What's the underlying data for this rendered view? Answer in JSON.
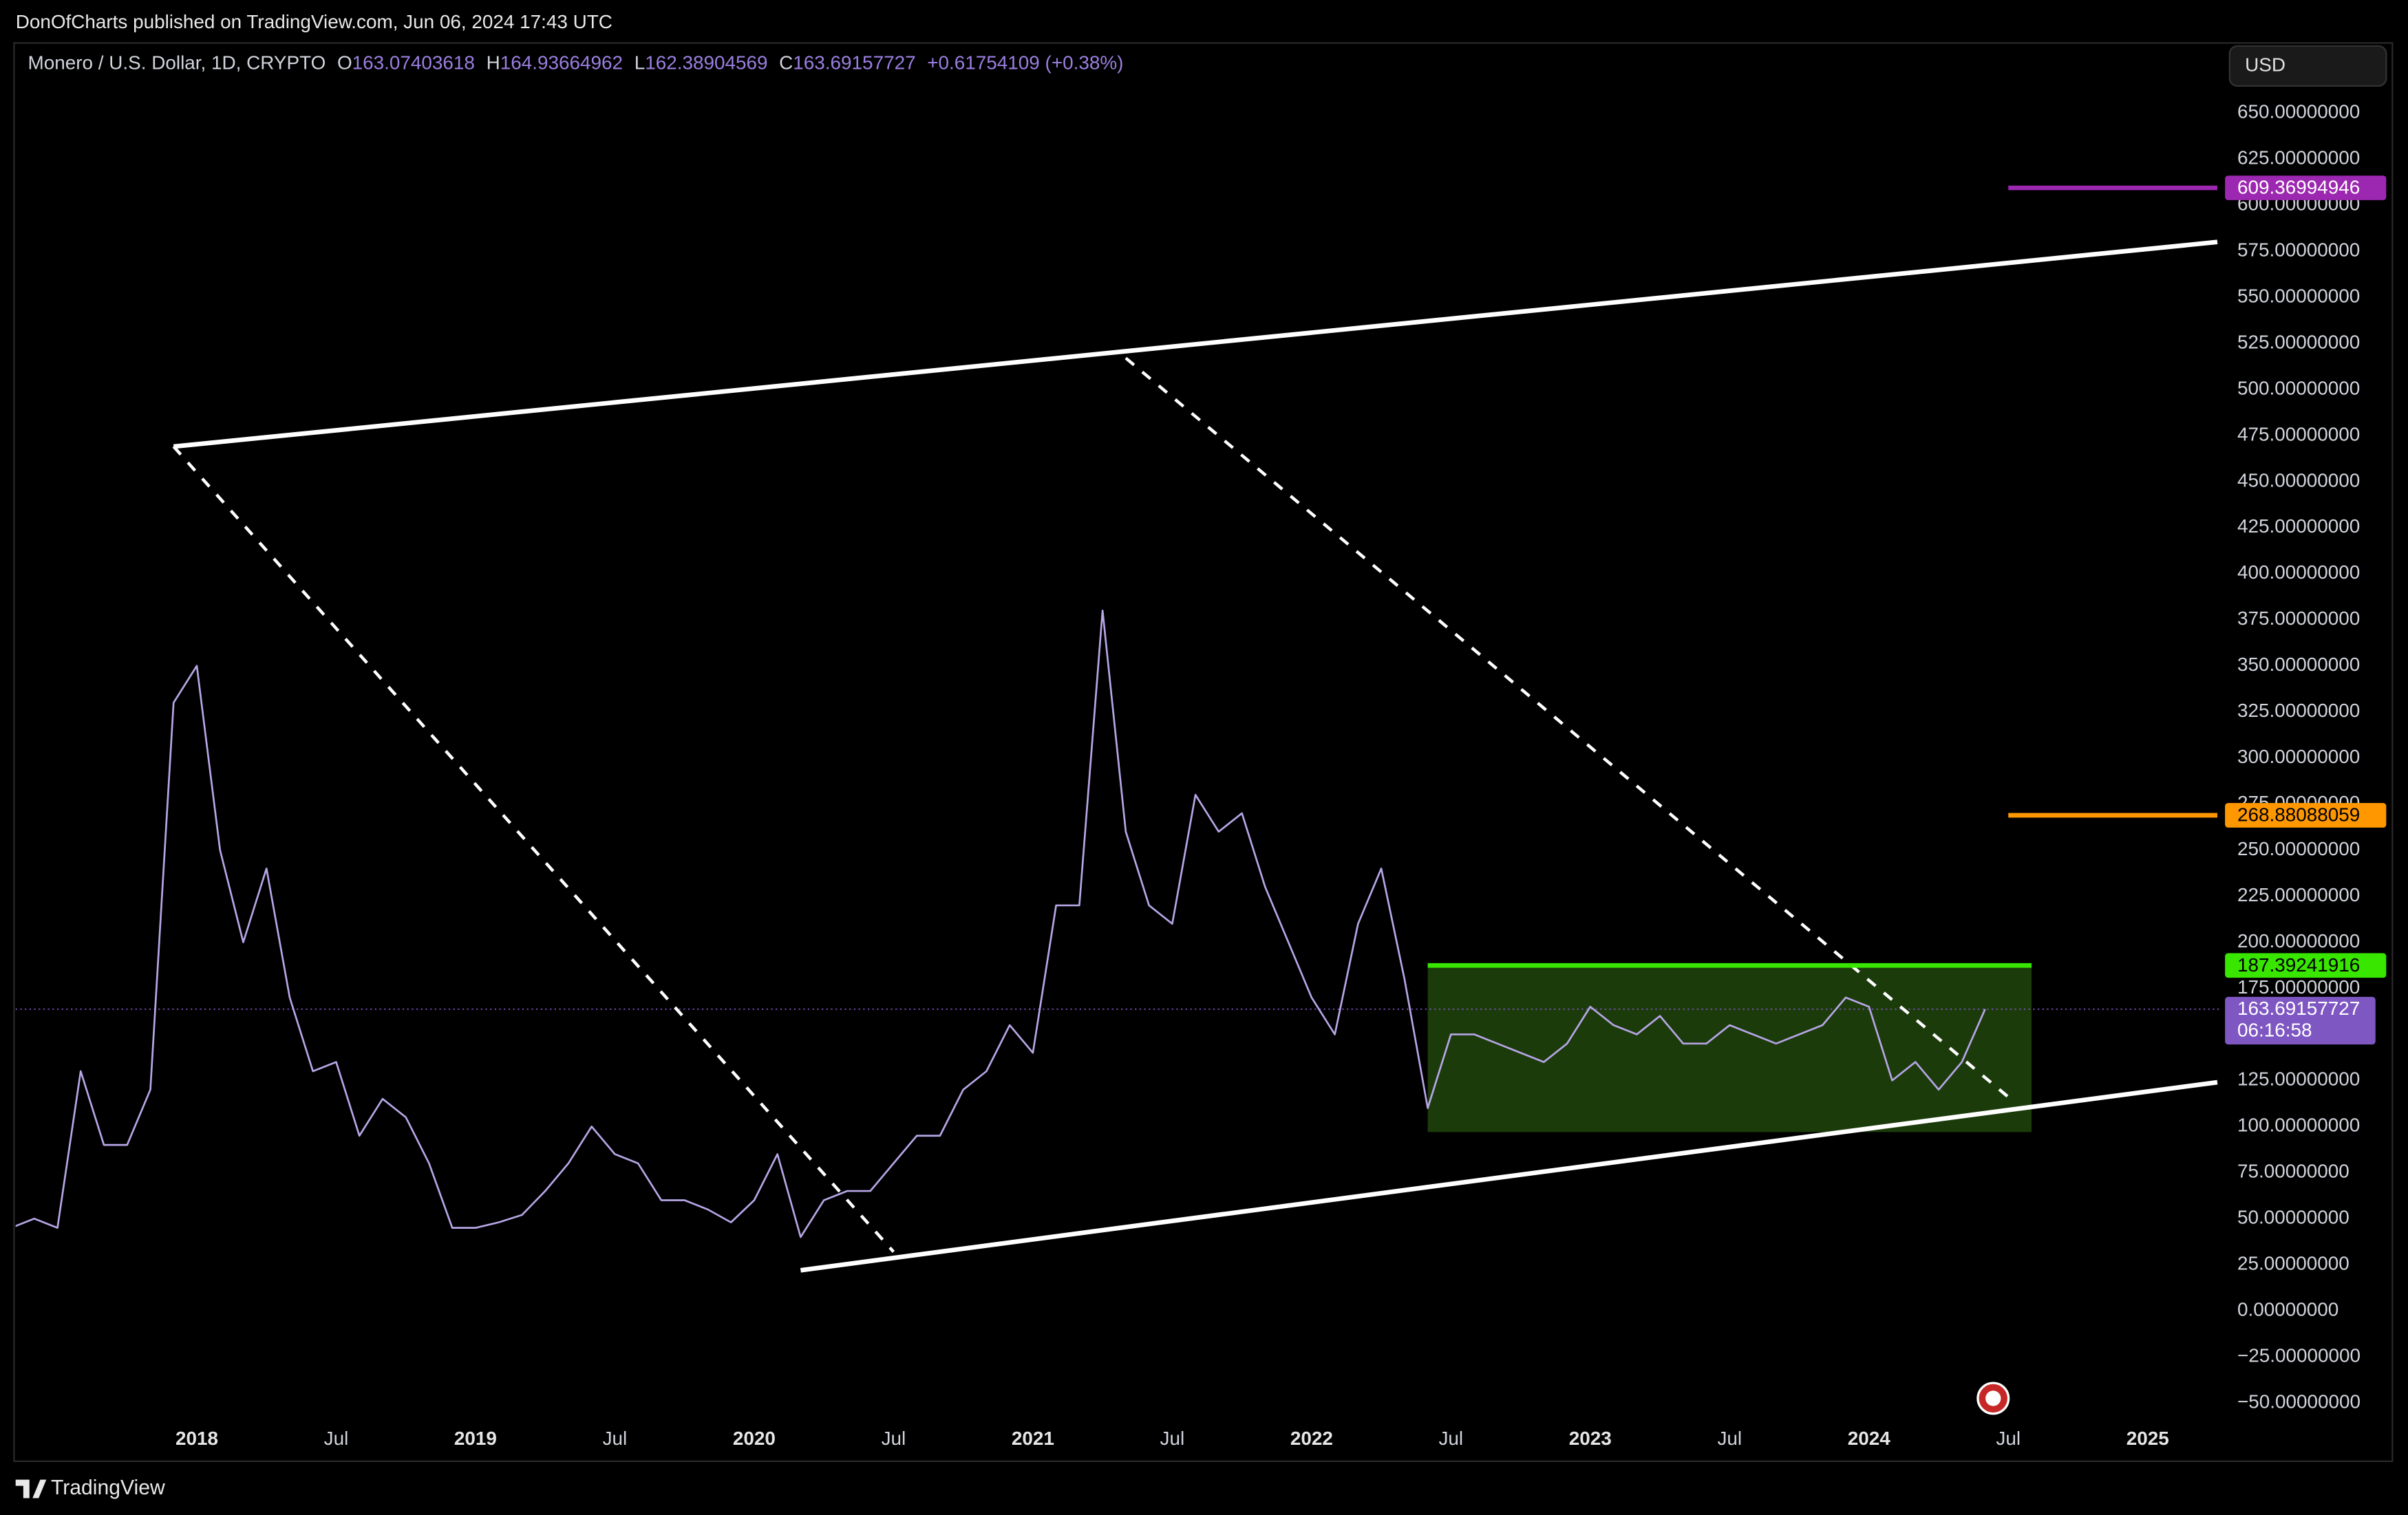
{
  "header": {
    "published": "DonOfCharts published on TradingView.com, Jun 06, 2024 17:43 UTC",
    "currency": "USD",
    "brand": "TradingView"
  },
  "chart_data": {
    "type": "line",
    "title": "Monero / U.S. Dollar, 1D, CRYPTO",
    "ohlc": [
      {
        "label": "O",
        "value": 163.07403618
      },
      {
        "label": "H",
        "value": 164.93664962
      },
      {
        "label": "L",
        "value": 162.38904569
      },
      {
        "label": "C",
        "value": 163.69157727
      }
    ],
    "change": "+0.61754109 (+0.38%)",
    "x": [
      "2017-05",
      "2017-06",
      "2017-07",
      "2017-08",
      "2017-09",
      "2017-10",
      "2017-11",
      "2017-12",
      "2018-01",
      "2018-02",
      "2018-03",
      "2018-04",
      "2018-05",
      "2018-06",
      "2018-07",
      "2018-08",
      "2018-09",
      "2018-10",
      "2018-11",
      "2018-12",
      "2019-01",
      "2019-02",
      "2019-03",
      "2019-04",
      "2019-05",
      "2019-06",
      "2019-07",
      "2019-08",
      "2019-09",
      "2019-10",
      "2019-11",
      "2019-12",
      "2020-01",
      "2020-02",
      "2020-03",
      "2020-04",
      "2020-05",
      "2020-06",
      "2020-07",
      "2020-08",
      "2020-09",
      "2020-10",
      "2020-11",
      "2020-12",
      "2021-01",
      "2021-02",
      "2021-03",
      "2021-04",
      "2021-05",
      "2021-06",
      "2021-07",
      "2021-08",
      "2021-09",
      "2021-10",
      "2021-11",
      "2021-12",
      "2022-01",
      "2022-02",
      "2022-03",
      "2022-04",
      "2022-05",
      "2022-06",
      "2022-07",
      "2022-08",
      "2022-09",
      "2022-10",
      "2022-11",
      "2022-12",
      "2023-01",
      "2023-02",
      "2023-03",
      "2023-04",
      "2023-05",
      "2023-06",
      "2023-07",
      "2023-08",
      "2023-09",
      "2023-10",
      "2023-11",
      "2023-12",
      "2024-01",
      "2024-02",
      "2024-03",
      "2024-04",
      "2024-05",
      "2024-06"
    ],
    "series": [
      {
        "name": "XMRUSD",
        "color": "#b7a6e6",
        "values": [
          45,
          50,
          45,
          130,
          90,
          90,
          120,
          330,
          350,
          250,
          200,
          240,
          170,
          130,
          135,
          95,
          115,
          105,
          80,
          45,
          45,
          48,
          52,
          65,
          80,
          100,
          85,
          80,
          60,
          60,
          55,
          48,
          60,
          85,
          40,
          60,
          65,
          65,
          80,
          95,
          95,
          120,
          130,
          155,
          140,
          220,
          220,
          380,
          260,
          220,
          210,
          280,
          260,
          270,
          230,
          200,
          170,
          150,
          210,
          240,
          180,
          110,
          150,
          150,
          145,
          140,
          135,
          145,
          165,
          155,
          150,
          160,
          145,
          145,
          155,
          150,
          145,
          150,
          155,
          170,
          165,
          125,
          135,
          120,
          135,
          163.69157727
        ]
      }
    ],
    "xlim": [
      "2017-05",
      "2025-04"
    ],
    "xticks": [
      {
        "value": "2018-01",
        "label": "2018"
      },
      {
        "value": "2018-07",
        "label": "Jul"
      },
      {
        "value": "2019-01",
        "label": "2019"
      },
      {
        "value": "2019-07",
        "label": "Jul"
      },
      {
        "value": "2020-01",
        "label": "2020"
      },
      {
        "value": "2020-07",
        "label": "Jul"
      },
      {
        "value": "2021-01",
        "label": "2021"
      },
      {
        "value": "2021-07",
        "label": "Jul"
      },
      {
        "value": "2022-01",
        "label": "2022"
      },
      {
        "value": "2022-07",
        "label": "Jul"
      },
      {
        "value": "2023-01",
        "label": "2023"
      },
      {
        "value": "2023-07",
        "label": "Jul"
      },
      {
        "value": "2024-01",
        "label": "2024"
      },
      {
        "value": "2024-07",
        "label": "Jul"
      },
      {
        "value": "2025-01",
        "label": "2025"
      }
    ],
    "ylim": [
      -80,
      688
    ],
    "yticks": [
      {
        "value": 650,
        "label": "650.00000000"
      },
      {
        "value": 625,
        "label": "625.00000000"
      },
      {
        "value": 600,
        "label": "600.00000000"
      },
      {
        "value": 575,
        "label": "575.00000000"
      },
      {
        "value": 550,
        "label": "550.00000000"
      },
      {
        "value": 525,
        "label": "525.00000000"
      },
      {
        "value": 500,
        "label": "500.00000000"
      },
      {
        "value": 475,
        "label": "475.00000000"
      },
      {
        "value": 450,
        "label": "450.00000000"
      },
      {
        "value": 425,
        "label": "425.00000000"
      },
      {
        "value": 400,
        "label": "400.00000000"
      },
      {
        "value": 375,
        "label": "375.00000000"
      },
      {
        "value": 350,
        "label": "350.00000000"
      },
      {
        "value": 325,
        "label": "325.00000000"
      },
      {
        "value": 300,
        "label": "300.00000000"
      },
      {
        "value": 275,
        "label": "275.00000000"
      },
      {
        "value": 250,
        "label": "250.00000000"
      },
      {
        "value": 225,
        "label": "225.00000000"
      },
      {
        "value": 200,
        "label": "200.00000000"
      },
      {
        "value": 175,
        "label": "175.00000000"
      },
      {
        "value": 150,
        "label": "150.00000000"
      },
      {
        "value": 125,
        "label": "125.00000000"
      },
      {
        "value": 100,
        "label": "100.00000000"
      },
      {
        "value": 75,
        "label": "75.00000000"
      },
      {
        "value": 50,
        "label": "50.00000000"
      },
      {
        "value": 25,
        "label": "25.00000000"
      },
      {
        "value": 0,
        "label": "0.00000000"
      },
      {
        "value": -25,
        "label": "−25.00000000"
      },
      {
        "value": -50,
        "label": "−50.00000000"
      }
    ],
    "grid": false,
    "box": {
      "x": [
        "2022-06",
        "2024-08"
      ],
      "y": [
        97,
        187.39241916
      ],
      "color": "#1c3b0b"
    },
    "trendlines": [
      {
        "x": [
          "2017-12",
          "2025-04"
        ],
        "y": [
          469,
          580
        ],
        "color": "#ffffff",
        "dashed": false
      },
      {
        "x": [
          "2020-03",
          "2025-04"
        ],
        "y": [
          22,
          124
        ],
        "color": "#ffffff",
        "dashed": false
      },
      {
        "x": [
          "2017-12",
          "2020-07"
        ],
        "y": [
          469,
          32
        ],
        "color": "#ffffff",
        "dashed": true
      },
      {
        "x": [
          "2021-05",
          "2024-07"
        ],
        "y": [
          517,
          116
        ],
        "color": "#ffffff",
        "dashed": true
      }
    ],
    "levels": [
      {
        "value": 609.36994946,
        "start": "2024-07",
        "end": "2025-04",
        "color": "#9c27b0",
        "text_color": "#ffffff"
      },
      {
        "value": 268.88088059,
        "start": "2024-07",
        "end": "2025-04",
        "color": "#ff9800",
        "text_color": "#000000"
      },
      {
        "value": 187.39241916,
        "start": "2022-06",
        "end": "2024-08",
        "color": "#39e600",
        "text_color": "#000000"
      }
    ],
    "last": {
      "value": 163.69157727,
      "countdown": "06:16:58",
      "color": "#7e57c2"
    }
  }
}
